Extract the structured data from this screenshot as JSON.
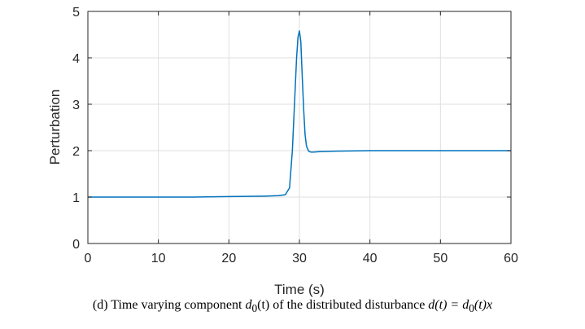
{
  "chart_data": {
    "type": "line",
    "xlabel": "Time (s)",
    "ylabel": "Perturbation",
    "xlim": [
      0,
      60
    ],
    "ylim": [
      0,
      5
    ],
    "xticks": [
      0,
      10,
      20,
      30,
      40,
      50,
      60
    ],
    "yticks": [
      0,
      1,
      2,
      3,
      4,
      5
    ],
    "grid": true,
    "series": [
      {
        "color": "#0072bd",
        "x": [
          0,
          5,
          10,
          15,
          20,
          25,
          27,
          28,
          28.6,
          29,
          29.3,
          29.6,
          29.8,
          30,
          30.2,
          30.4,
          30.6,
          30.8,
          31,
          31.3,
          31.6,
          32,
          33,
          35,
          40,
          45,
          50,
          55,
          60
        ],
        "y": [
          1.0,
          1.0,
          1.0,
          1.0,
          1.01,
          1.02,
          1.03,
          1.05,
          1.2,
          2.0,
          3.0,
          4.0,
          4.45,
          4.58,
          4.35,
          3.6,
          2.9,
          2.35,
          2.1,
          1.99,
          1.97,
          1.97,
          1.98,
          1.99,
          2.0,
          2.0,
          2.0,
          2.0,
          2.0
        ]
      }
    ]
  },
  "caption": {
    "prefix": "(d) Time varying component ",
    "sym1": "d",
    "sub1": "0",
    "arg1": "(t)",
    "middle": " of the distributed disturbance ",
    "sym2": "d(t) = d",
    "sub2": "0",
    "arg2": "(t)x"
  }
}
